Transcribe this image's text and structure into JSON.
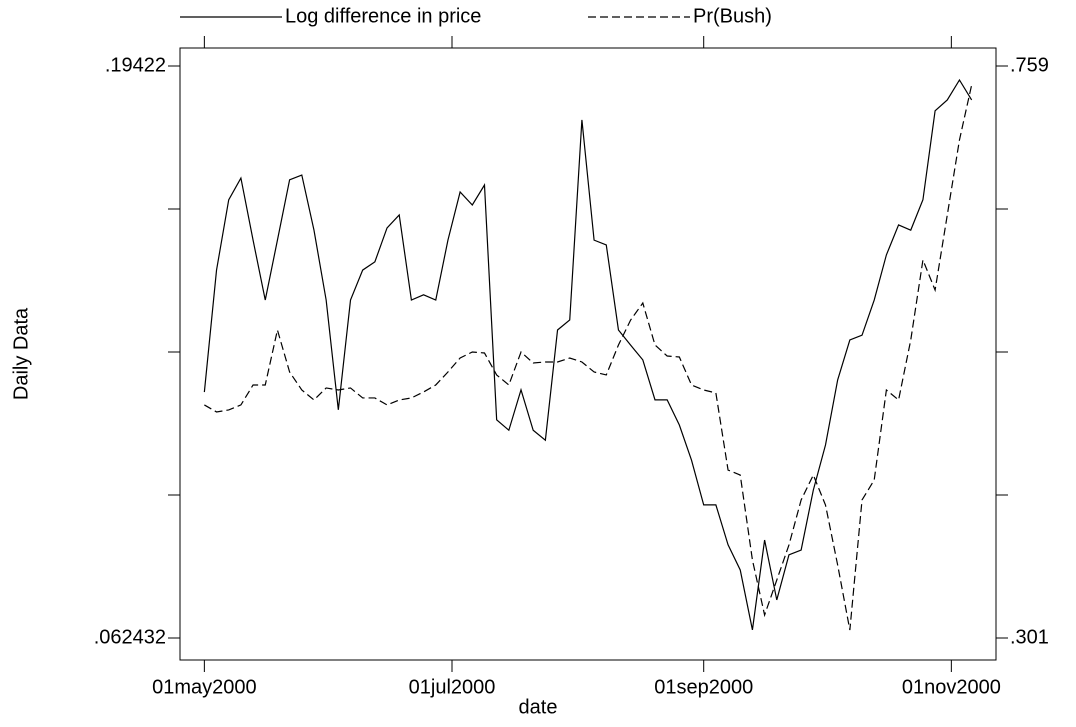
{
  "chart_data": {
    "type": "line",
    "x_label": "date",
    "y_label": "Daily Data",
    "x": [
      "2000-05-01",
      "2000-05-04",
      "2000-05-07",
      "2000-05-10",
      "2000-05-13",
      "2000-05-16",
      "2000-05-19",
      "2000-05-22",
      "2000-05-25",
      "2000-05-28",
      "2000-05-31",
      "2000-06-03",
      "2000-06-06",
      "2000-06-09",
      "2000-06-12",
      "2000-06-15",
      "2000-06-18",
      "2000-06-21",
      "2000-06-24",
      "2000-06-27",
      "2000-06-30",
      "2000-07-03",
      "2000-07-06",
      "2000-07-09",
      "2000-07-12",
      "2000-07-15",
      "2000-07-18",
      "2000-07-21",
      "2000-07-24",
      "2000-07-27",
      "2000-07-30",
      "2000-08-02",
      "2000-08-05",
      "2000-08-08",
      "2000-08-11",
      "2000-08-14",
      "2000-08-17",
      "2000-08-20",
      "2000-08-23",
      "2000-08-26",
      "2000-08-29",
      "2000-09-01",
      "2000-09-04",
      "2000-09-07",
      "2000-09-10",
      "2000-09-13",
      "2000-09-16",
      "2000-09-19",
      "2000-09-22",
      "2000-09-25",
      "2000-09-28",
      "2000-10-01",
      "2000-10-04",
      "2000-10-07",
      "2000-10-10",
      "2000-10-13",
      "2000-10-16",
      "2000-10-19",
      "2000-10-22",
      "2000-10-25",
      "2000-10-28",
      "2000-10-31",
      "2000-11-03",
      "2000-11-06"
    ],
    "xlim": [
      "2000-04-25",
      "2000-11-12"
    ],
    "xticks": [
      {
        "value": "2000-05-01",
        "label": "01may2000"
      },
      {
        "value": "2000-07-01",
        "label": "01jul2000"
      },
      {
        "value": "2000-09-01",
        "label": "01sep2000"
      },
      {
        "value": "2000-11-01",
        "label": "01nov2000"
      }
    ],
    "ylim": [
      0.057363,
      0.198367
    ],
    "yticks": [
      {
        "value": 0.062432,
        "label": ".062432"
      },
      {
        "value": 0.095379,
        "label": null
      },
      {
        "value": 0.128326,
        "label": null
      },
      {
        "value": 0.161273,
        "label": null
      },
      {
        "value": 0.19422,
        "label": ".19422"
      }
    ],
    "y2lim": [
      0.283385,
      0.773413
    ],
    "y2ticks": [
      {
        "value": 0.301,
        "label": ".301"
      },
      {
        "value": 0.4155,
        "label": null
      },
      {
        "value": 0.53,
        "label": null
      },
      {
        "value": 0.6445,
        "label": null
      },
      {
        "value": 0.759,
        "label": ".759"
      }
    ],
    "series": [
      {
        "name": "Log difference in price",
        "color": "#000000",
        "dash": "solid",
        "values": [
          0.1191,
          0.1472,
          0.1634,
          0.1684,
          0.1541,
          0.1403,
          0.1541,
          0.168,
          0.1691,
          0.1564,
          0.1403,
          0.115,
          0.1403,
          0.1472,
          0.1491,
          0.1569,
          0.1599,
          0.1403,
          0.1415,
          0.1403,
          0.1541,
          0.1652,
          0.1622,
          0.1668,
          0.1127,
          0.1103,
          0.1196,
          0.1103,
          0.108,
          0.1334,
          0.1357,
          0.1818,
          0.1541,
          0.153,
          0.1334,
          0.1299,
          0.1265,
          0.1173,
          0.1173,
          0.1115,
          0.1034,
          0.0931,
          0.0931,
          0.0839,
          0.0781,
          0.0643,
          0.085,
          0.0712,
          0.0816,
          0.0827,
          0.0965,
          0.1069,
          0.1219,
          0.1311,
          0.1322,
          0.1403,
          0.1507,
          0.1576,
          0.1564,
          0.1634,
          0.1839,
          0.1864,
          0.191,
          0.1864
        ]
      },
      {
        "name": "Pr(Bush)",
        "color": "#000000",
        "dash": "dashed",
        "axis": "y2",
        "values": [
          0.4876,
          0.482,
          0.4836,
          0.4876,
          0.5036,
          0.5036,
          0.5476,
          0.514,
          0.4996,
          0.4916,
          0.5012,
          0.4996,
          0.5012,
          0.4932,
          0.4932,
          0.4876,
          0.4916,
          0.4932,
          0.498,
          0.5036,
          0.514,
          0.5252,
          0.53,
          0.5292,
          0.5116,
          0.5036,
          0.53,
          0.5212,
          0.522,
          0.522,
          0.5252,
          0.522,
          0.514,
          0.5116,
          0.5356,
          0.5556,
          0.5692,
          0.5356,
          0.5268,
          0.526,
          0.5036,
          0.4996,
          0.4972,
          0.4355,
          0.4315,
          0.3635,
          0.3194,
          0.3474,
          0.3755,
          0.4115,
          0.4315,
          0.4075,
          0.3594,
          0.3074,
          0.4115,
          0.4275,
          0.4996,
          0.4916,
          0.5396,
          0.6037,
          0.5796,
          0.6397,
          0.6998,
          0.7438
        ]
      }
    ]
  }
}
